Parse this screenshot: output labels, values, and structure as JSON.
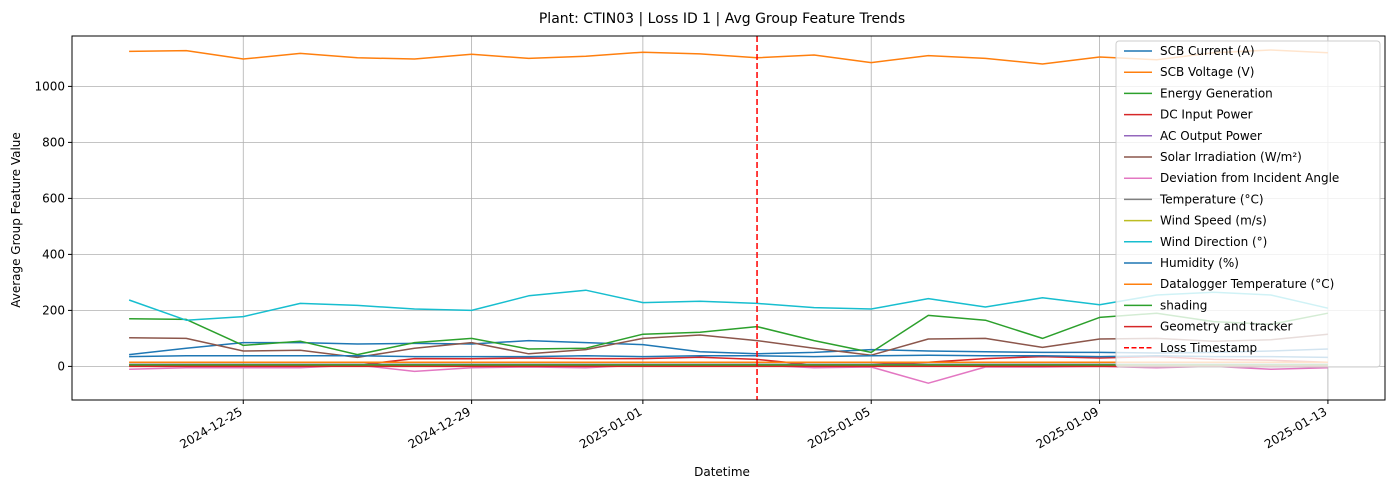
{
  "chart_data": {
    "type": "line",
    "title": "Plant: CTIN03 | Loss ID 1 | Avg Group Feature Trends",
    "xlabel": "Datetime",
    "ylabel": "Average Group Feature Value",
    "x_dates": [
      "2024-12-23",
      "2024-12-24",
      "2024-12-25",
      "2024-12-26",
      "2024-12-27",
      "2024-12-28",
      "2024-12-29",
      "2024-12-30",
      "2024-12-31",
      "2025-01-01",
      "2025-01-02",
      "2025-01-03",
      "2025-01-04",
      "2025-01-05",
      "2025-01-06",
      "2025-01-07",
      "2025-01-08",
      "2025-01-09",
      "2025-01-10",
      "2025-01-11",
      "2025-01-12",
      "2025-01-13"
    ],
    "xlim": [
      "2024-12-22",
      "2025-01-14"
    ],
    "x_ticks": [
      "2024-12-25",
      "2024-12-29",
      "2025-01-01",
      "2025-01-05",
      "2025-01-09",
      "2025-01-13"
    ],
    "ylim": [
      -120,
      1180
    ],
    "y_ticks": [
      0,
      200,
      400,
      600,
      800,
      1000
    ],
    "grid": true,
    "legend_position": "top-right",
    "series": [
      {
        "name": "SCB Current (A)",
        "color": "#1f77b4",
        "values": [
          42,
          65,
          85,
          85,
          80,
          82,
          80,
          92,
          85,
          78,
          52,
          45,
          50,
          60,
          55,
          52,
          50,
          50,
          48,
          50,
          55,
          62
        ]
      },
      {
        "name": "SCB Voltage (V)",
        "color": "#ff7f0e",
        "values": [
          1125,
          1128,
          1098,
          1118,
          1102,
          1098,
          1115,
          1100,
          1108,
          1122,
          1116,
          1102,
          1112,
          1085,
          1110,
          1100,
          1080,
          1105,
          1095,
          1120,
          1130,
          1120
        ]
      },
      {
        "name": "Energy Generation",
        "color": "#2ca02c",
        "values": [
          170,
          168,
          75,
          90,
          42,
          85,
          100,
          62,
          65,
          115,
          122,
          142,
          92,
          50,
          182,
          165,
          100,
          175,
          190,
          160,
          150,
          190
        ]
      },
      {
        "name": "DC Input Power",
        "color": "#d62728",
        "values": [
          5,
          5,
          5,
          5,
          5,
          28,
          27,
          30,
          28,
          28,
          33,
          25,
          5,
          8,
          15,
          28,
          35,
          30,
          35,
          25,
          22,
          15
        ]
      },
      {
        "name": "AC Output Power",
        "color": "#9467bd",
        "values": [
          3,
          3,
          3,
          3,
          3,
          3,
          3,
          3,
          3,
          3,
          3,
          3,
          3,
          3,
          3,
          3,
          3,
          3,
          3,
          3,
          3,
          3
        ]
      },
      {
        "name": "Solar Irradiation (W/m²)",
        "color": "#8c564b",
        "values": [
          102,
          100,
          55,
          58,
          32,
          65,
          85,
          45,
          60,
          100,
          112,
          92,
          65,
          40,
          98,
          100,
          68,
          98,
          100,
          90,
          95,
          115
        ]
      },
      {
        "name": "Deviation from Incident Angle",
        "color": "#e377c2",
        "values": [
          -10,
          -5,
          -5,
          -5,
          5,
          -18,
          -5,
          -2,
          -5,
          5,
          5,
          5,
          -5,
          -2,
          -60,
          -2,
          -2,
          0,
          -5,
          0,
          -10,
          -5
        ]
      },
      {
        "name": "Temperature (°C)",
        "color": "#7f7f7f",
        "values": [
          8,
          8,
          8,
          8,
          8,
          8,
          8,
          8,
          8,
          8,
          8,
          8,
          8,
          8,
          8,
          8,
          8,
          8,
          8,
          8,
          8,
          8
        ]
      },
      {
        "name": "Wind Speed (m/s)",
        "color": "#bcbd22",
        "values": [
          4,
          4,
          4,
          4,
          4,
          4,
          4,
          4,
          4,
          4,
          4,
          4,
          4,
          4,
          4,
          4,
          4,
          4,
          4,
          4,
          4,
          4
        ]
      },
      {
        "name": "Wind Direction (°)",
        "color": "#17becf",
        "values": [
          237,
          165,
          178,
          225,
          218,
          205,
          200,
          252,
          272,
          228,
          233,
          225,
          210,
          205,
          242,
          212,
          245,
          220,
          255,
          265,
          255,
          208
        ]
      },
      {
        "name": "Humidity (%)",
        "color": "#1f77b4",
        "values": [
          35,
          38,
          38,
          38,
          38,
          35,
          35,
          35,
          38,
          35,
          38,
          38,
          35,
          38,
          40,
          38,
          38,
          35,
          38,
          35,
          35,
          32
        ]
      },
      {
        "name": "Datalogger Temperature (°C)",
        "color": "#ff7f0e",
        "values": [
          15,
          15,
          15,
          15,
          15,
          15,
          15,
          15,
          15,
          15,
          15,
          15,
          15,
          15,
          15,
          15,
          15,
          15,
          15,
          15,
          15,
          15
        ]
      },
      {
        "name": "shading",
        "color": "#2ca02c",
        "values": [
          5,
          5,
          5,
          5,
          5,
          5,
          5,
          5,
          5,
          5,
          5,
          5,
          5,
          5,
          5,
          5,
          5,
          5,
          5,
          5,
          5,
          5
        ]
      },
      {
        "name": "Geometry and tracker",
        "color": "#d62728",
        "values": [
          0,
          0,
          0,
          0,
          0,
          0,
          0,
          0,
          0,
          0,
          0,
          0,
          0,
          0,
          0,
          0,
          0,
          0,
          0,
          0,
          0,
          0
        ]
      }
    ],
    "markers": [
      {
        "type": "vline",
        "name": "Loss Timestamp",
        "x": "2025-01-03",
        "color": "#ff0000",
        "style": "dashed"
      }
    ]
  }
}
